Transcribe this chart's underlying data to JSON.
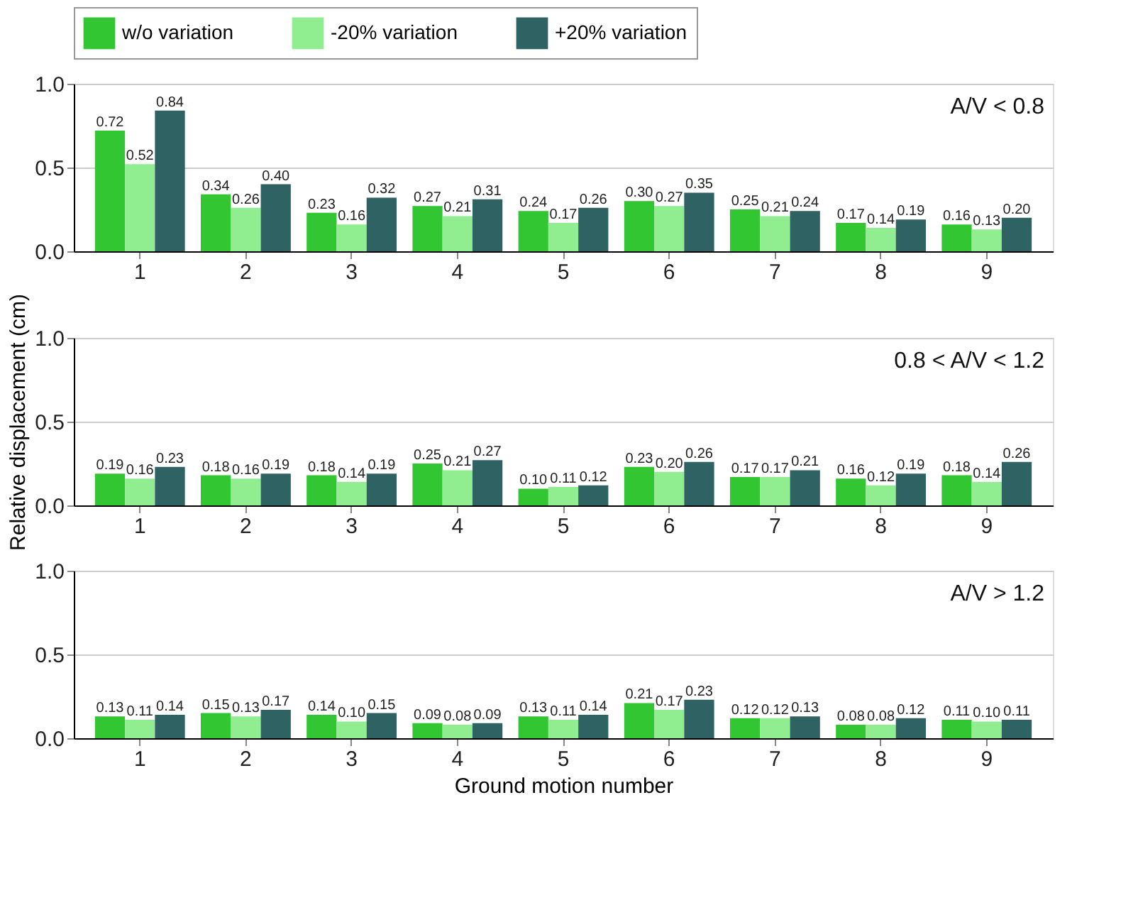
{
  "chart_data": [
    {
      "type": "bar",
      "categories": [
        "1",
        "2",
        "3",
        "4",
        "5",
        "6",
        "7",
        "8",
        "9"
      ],
      "series": [
        {
          "name": "w/o variation",
          "color": "#33c633",
          "values": [
            0.72,
            0.34,
            0.23,
            0.27,
            0.24,
            0.3,
            0.25,
            0.17,
            0.16
          ],
          "value_labels": [
            "0.72",
            "0.34",
            "0.23",
            "0.27",
            "0.24",
            "0.30",
            "0.25",
            "0.17",
            "0.16"
          ]
        },
        {
          "name": "-20% variation",
          "color": "#90ee90",
          "values": [
            0.52,
            0.26,
            0.16,
            0.21,
            0.17,
            0.27,
            0.21,
            0.14,
            0.13
          ],
          "value_labels": [
            "0.52",
            "0.26",
            "0.16",
            "0.21",
            "0.17",
            "0.27",
            "0.21",
            "0.14",
            "0.13"
          ]
        },
        {
          "name": "+20% variation",
          "color": "#2f6363",
          "values": [
            0.84,
            0.4,
            0.32,
            0.31,
            0.26,
            0.35,
            0.24,
            0.19,
            0.2
          ],
          "value_labels": [
            "0.84",
            "0.40",
            "0.32",
            "0.31",
            "0.26",
            "0.35",
            "0.24",
            "0.19",
            "0.20"
          ]
        }
      ],
      "ylim": [
        0,
        1.0
      ],
      "yticks": [
        {
          "value": 0,
          "label": "0.0"
        },
        {
          "value": 0.5,
          "label": "0.5"
        },
        {
          "value": 1.0,
          "label": "1.0"
        }
      ],
      "grid": "y",
      "legend": "top",
      "annotations": [
        "A/V < 0.8"
      ]
    },
    {
      "type": "bar",
      "categories": [
        "1",
        "2",
        "3",
        "4",
        "5",
        "6",
        "7",
        "8",
        "9"
      ],
      "series": [
        {
          "name": "w/o variation",
          "color": "#33c633",
          "values": [
            0.19,
            0.18,
            0.18,
            0.25,
            0.1,
            0.23,
            0.17,
            0.16,
            0.18
          ],
          "value_labels": [
            "0.19",
            "0.18",
            "0.18",
            "0.25",
            "0.10",
            "0.23",
            "0.17",
            "0.16",
            "0.18"
          ]
        },
        {
          "name": "-20% variation",
          "color": "#90ee90",
          "values": [
            0.16,
            0.16,
            0.14,
            0.21,
            0.11,
            0.2,
            0.17,
            0.12,
            0.14
          ],
          "value_labels": [
            "0.16",
            "0.16",
            "0.14",
            "0.21",
            "0.11",
            "0.20",
            "0.17",
            "0.12",
            "0.14"
          ]
        },
        {
          "name": "+20% variation",
          "color": "#2f6363",
          "values": [
            0.23,
            0.19,
            0.19,
            0.27,
            0.12,
            0.26,
            0.21,
            0.19,
            0.26
          ],
          "value_labels": [
            "0.23",
            "0.19",
            "0.19",
            "0.27",
            "0.12",
            "0.26",
            "0.21",
            "0.19",
            "0.26"
          ]
        }
      ],
      "ylabel": "Relative displacement (cm)",
      "ylim": [
        0,
        1.0
      ],
      "yticks": [
        {
          "value": 0,
          "label": "0.0"
        },
        {
          "value": 0.5,
          "label": "0.5"
        },
        {
          "value": 1.0,
          "label": "1.0"
        }
      ],
      "grid": "y",
      "annotations": [
        "0.8 < A/V < 1.2"
      ]
    },
    {
      "type": "bar",
      "categories": [
        "1",
        "2",
        "3",
        "4",
        "5",
        "6",
        "7",
        "8",
        "9"
      ],
      "series": [
        {
          "name": "w/o variation",
          "color": "#33c633",
          "values": [
            0.13,
            0.15,
            0.14,
            0.09,
            0.13,
            0.21,
            0.12,
            0.08,
            0.11
          ],
          "value_labels": [
            "0.13",
            "0.15",
            "0.14",
            "0.09",
            "0.13",
            "0.21",
            "0.12",
            "0.08",
            "0.11"
          ]
        },
        {
          "name": "-20% variation",
          "color": "#90ee90",
          "values": [
            0.11,
            0.13,
            0.1,
            0.08,
            0.11,
            0.17,
            0.12,
            0.08,
            0.1
          ],
          "value_labels": [
            "0.11",
            "0.13",
            "0.10",
            "0.08",
            "0.11",
            "0.17",
            "0.12",
            "0.08",
            "0.10"
          ]
        },
        {
          "name": "+20% variation",
          "color": "#2f6363",
          "values": [
            0.14,
            0.17,
            0.15,
            0.09,
            0.14,
            0.23,
            0.13,
            0.12,
            0.11
          ],
          "value_labels": [
            "0.14",
            "0.17",
            "0.15",
            "0.09",
            "0.14",
            "0.23",
            "0.13",
            "0.12",
            "0.11"
          ]
        }
      ],
      "xlabel": "Ground motion number",
      "ylim": [
        0,
        1.0
      ],
      "yticks": [
        {
          "value": 0,
          "label": "0.0"
        },
        {
          "value": 0.5,
          "label": "0.5"
        },
        {
          "value": 1.0,
          "label": "1.0"
        }
      ],
      "grid": "y",
      "annotations": [
        "A/V > 1.2"
      ]
    }
  ]
}
